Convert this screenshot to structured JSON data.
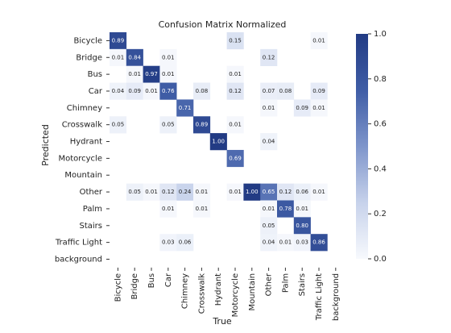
{
  "chart_data": {
    "type": "heatmap",
    "title": "Confusion Matrix Normalized",
    "x_label": "True",
    "y_label": "Predicted",
    "x_categories": [
      "Bicycle",
      "Bridge",
      "Bus",
      "Car",
      "Chimney",
      "Crosswalk",
      "Hydrant",
      "Motorcycle",
      "Mountain",
      "Other",
      "Palm",
      "Stairs",
      "Traffic Light",
      "background"
    ],
    "y_categories": [
      "Bicycle",
      "Bridge",
      "Bus",
      "Car",
      "Chimney",
      "Crosswalk",
      "Hydrant",
      "Motorcycle",
      "Mountain",
      "Other",
      "Palm",
      "Stairs",
      "Traffic Light",
      "background"
    ],
    "z": [
      [
        0.89,
        null,
        null,
        null,
        null,
        null,
        null,
        0.15,
        null,
        null,
        null,
        null,
        0.01,
        null
      ],
      [
        0.01,
        0.84,
        null,
        0.01,
        null,
        null,
        null,
        null,
        null,
        0.12,
        null,
        null,
        null,
        null
      ],
      [
        null,
        0.01,
        0.97,
        0.01,
        null,
        null,
        null,
        0.01,
        null,
        null,
        null,
        null,
        null,
        null
      ],
      [
        0.04,
        0.09,
        0.01,
        0.76,
        null,
        0.08,
        null,
        0.12,
        null,
        0.07,
        0.08,
        null,
        0.09,
        null
      ],
      [
        null,
        null,
        null,
        null,
        0.71,
        null,
        null,
        null,
        null,
        0.01,
        null,
        0.09,
        0.01,
        null
      ],
      [
        0.05,
        null,
        null,
        0.05,
        null,
        0.89,
        null,
        0.01,
        null,
        null,
        null,
        null,
        null,
        null
      ],
      [
        null,
        null,
        null,
        null,
        null,
        null,
        1.0,
        null,
        null,
        0.04,
        null,
        null,
        null,
        null
      ],
      [
        null,
        null,
        null,
        null,
        null,
        null,
        null,
        0.69,
        null,
        null,
        null,
        null,
        null,
        null
      ],
      [
        null,
        null,
        null,
        null,
        null,
        null,
        null,
        null,
        null,
        null,
        null,
        null,
        null,
        null
      ],
      [
        null,
        0.05,
        0.01,
        0.12,
        0.24,
        0.01,
        null,
        0.01,
        1.0,
        0.65,
        0.12,
        0.06,
        0.01,
        null
      ],
      [
        null,
        null,
        null,
        0.01,
        null,
        0.01,
        null,
        null,
        null,
        0.01,
        0.78,
        0.01,
        null,
        null
      ],
      [
        null,
        null,
        null,
        null,
        null,
        null,
        null,
        null,
        null,
        0.05,
        null,
        0.8,
        null,
        null
      ],
      [
        null,
        null,
        null,
        0.03,
        0.06,
        null,
        null,
        null,
        null,
        0.04,
        0.01,
        0.03,
        0.86,
        null
      ],
      [
        null,
        null,
        null,
        null,
        null,
        null,
        null,
        null,
        null,
        null,
        null,
        null,
        null,
        null
      ]
    ],
    "value_labels": [
      [
        "0.89",
        null,
        null,
        null,
        null,
        null,
        null,
        "0.15",
        null,
        null,
        null,
        null,
        "0.01",
        null
      ],
      [
        "0.01",
        "0.84",
        null,
        "0.01",
        null,
        null,
        null,
        null,
        null,
        "0.12",
        null,
        null,
        null,
        null
      ],
      [
        null,
        "0.01",
        "0.97",
        "0.01",
        null,
        null,
        null,
        "0.01",
        null,
        null,
        null,
        null,
        null,
        null
      ],
      [
        "0.04",
        "0.09",
        "0.01",
        "0.76",
        null,
        "0.08",
        null,
        "0.12",
        null,
        "0.07",
        "0.08",
        null,
        "0.09",
        null
      ],
      [
        null,
        null,
        null,
        null,
        "0.71",
        null,
        null,
        null,
        null,
        "0.01",
        null,
        "0.09",
        "0.01",
        null
      ],
      [
        "0.05",
        null,
        null,
        "0.05",
        null,
        "0.89",
        null,
        "0.01",
        null,
        null,
        null,
        null,
        null,
        null
      ],
      [
        null,
        null,
        null,
        null,
        null,
        null,
        "1.00",
        null,
        null,
        "0.04",
        null,
        null,
        null,
        null
      ],
      [
        null,
        null,
        null,
        null,
        null,
        null,
        null,
        "0.69",
        null,
        null,
        null,
        null,
        null,
        null
      ],
      [
        null,
        null,
        null,
        null,
        null,
        null,
        null,
        null,
        null,
        null,
        null,
        null,
        null,
        null
      ],
      [
        null,
        "0.05",
        "0.01",
        "0.12",
        "0.24",
        "0.01",
        null,
        "0.01",
        "1.00",
        "0.65",
        "0.12",
        "0.06",
        "0.01",
        null
      ],
      [
        null,
        null,
        null,
        "0.01",
        null,
        "0.01",
        null,
        null,
        null,
        "0.01",
        "0.78",
        "0.01",
        null,
        null
      ],
      [
        null,
        null,
        null,
        null,
        null,
        null,
        null,
        null,
        null,
        "0.05",
        null,
        "0.80",
        null,
        null
      ],
      [
        null,
        null,
        null,
        "0.03",
        "0.06",
        null,
        null,
        null,
        null,
        "0.04",
        "0.01",
        "0.03",
        "0.86",
        null
      ],
      [
        null,
        null,
        null,
        null,
        null,
        null,
        null,
        null,
        null,
        null,
        null,
        null,
        null,
        null
      ]
    ],
    "colors": [
      "#f7f9fd",
      "#c7d2eb",
      "#7e95cb",
      "#3f5da6",
      "#223b84"
    ],
    "zlim": [
      0,
      1
    ],
    "zticks": [
      {
        "value": 0,
        "label": "0.0"
      },
      0.2,
      0.4,
      0.6,
      0.8,
      {
        "value": 1,
        "label": "1.0"
      }
    ]
  }
}
